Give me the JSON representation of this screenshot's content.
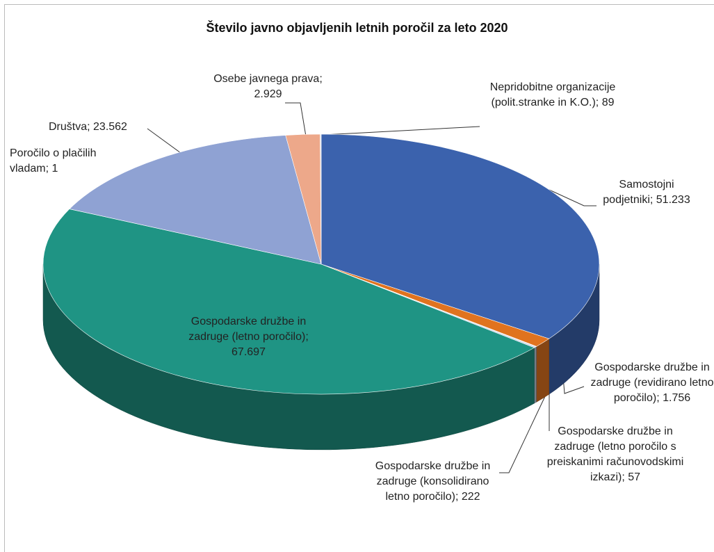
{
  "chart_data": {
    "type": "pie3d",
    "title": "Število javno objavljenih letnih poročil za leto 2020",
    "label_separator": "; ",
    "categories": [
      "Samostojni podjetniki",
      "Gospodarske družbe in zadruge (revidirano letno poročilo)",
      "Gospodarske družbe in zadruge (letno poročilo s preiskanimi računovodskimi izkazi)",
      "Gospodarske družbe in zadruge (konsolidirano letno poročilo)",
      "Gospodarske družbe in zadruge (letno poročilo)",
      "Poročilo o plačilih vladam",
      "Društva",
      "Osebe javnega prava",
      "Nepridobitne organizacije (polit.stranke in K.O.)"
    ],
    "values": [
      51233,
      1756,
      57,
      222,
      67697,
      1,
      23562,
      2929,
      89
    ],
    "value_labels": [
      "51.233",
      "1.756",
      "57",
      "222",
      "67.697",
      "1",
      "23.562",
      "2.929",
      "89"
    ],
    "colors": [
      "#3b62ad",
      "#e0731f",
      "#9aa8b8",
      "#c9d3e6",
      "#1f9484",
      "#5a7fc0",
      "#8fa2d3",
      "#eda88a",
      "#d8dde8"
    ]
  }
}
